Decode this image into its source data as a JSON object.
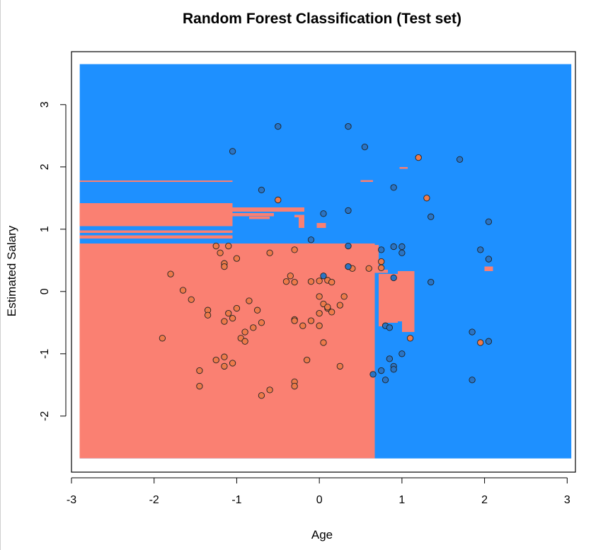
{
  "chart_data": {
    "type": "scatter",
    "title": "Random Forest Classification (Test set)",
    "xlabel": "Age",
    "ylabel": "Estimated Salary",
    "xlim": [
      -3.0,
      3.1
    ],
    "ylim": [
      -2.9,
      3.85
    ],
    "x_ticks": [
      -3,
      -2,
      -1,
      0,
      1,
      2,
      3
    ],
    "y_ticks": [
      -2,
      -1,
      0,
      1,
      2,
      3
    ],
    "x_tick_labels": [
      "-3",
      "-2",
      "-1",
      "0",
      "1",
      "2",
      "3"
    ],
    "y_tick_labels": [
      "-2",
      "-1",
      "0",
      "1",
      "2",
      "3"
    ],
    "grid": false,
    "colors": {
      "region_0": "#FA8072",
      "region_1": "#1E90FF",
      "point_0": "#EE7B4A",
      "point_1": "#2A74C4",
      "point_edge": "#222222"
    },
    "decision_regions": {
      "extent": {
        "x": [
          -2.9,
          3.05
        ],
        "y": [
          -2.68,
          3.65
        ]
      },
      "background_class": 1,
      "class0_rects": [
        [
          -2.9,
          0.67,
          -2.68,
          0.77
        ],
        [
          -1.1,
          0.08,
          0.55,
          0.57
        ],
        [
          0.08,
          0.65,
          0.55,
          0.75
        ],
        [
          0.65,
          0.72,
          0.3,
          0.75
        ],
        [
          0.72,
          0.83,
          0.3,
          0.35
        ],
        [
          0.72,
          1.15,
          -0.48,
          0.28
        ],
        [
          0.95,
          1.15,
          0.28,
          0.33
        ],
        [
          0.72,
          0.95,
          -0.5,
          -0.45
        ],
        [
          1.0,
          1.15,
          -0.65,
          -0.48
        ],
        [
          0.72,
          0.79,
          -0.56,
          -0.48
        ],
        [
          -2.9,
          -1.05,
          1.05,
          1.42
        ],
        [
          -2.9,
          -1.05,
          0.85,
          0.9
        ],
        [
          -2.9,
          -1.05,
          0.94,
          0.98
        ],
        [
          -1.05,
          -0.18,
          1.28,
          1.35
        ],
        [
          -1.05,
          -0.55,
          1.21,
          1.26
        ],
        [
          -0.85,
          -0.6,
          1.16,
          1.2
        ],
        [
          -0.3,
          -0.18,
          1.19,
          1.23
        ],
        [
          -0.25,
          -0.18,
          1.02,
          1.19
        ],
        [
          -0.03,
          0.08,
          1.02,
          1.1
        ],
        [
          -2.9,
          -1.05,
          1.76,
          1.78
        ],
        [
          0.5,
          0.65,
          1.76,
          1.79
        ],
        [
          0.97,
          1.07,
          1.97,
          2.0
        ],
        [
          2.0,
          2.1,
          0.33,
          0.4
        ]
      ]
    },
    "series": [
      {
        "name": "0",
        "x": [
          -1.9,
          -1.8,
          -1.65,
          -1.55,
          -1.45,
          -1.45,
          -1.35,
          -1.35,
          -1.25,
          -1.25,
          -1.2,
          -1.15,
          -1.15,
          -1.15,
          -1.15,
          -1.15,
          -1.1,
          -1.1,
          -1.05,
          -1.05,
          -1.0,
          -1.0,
          -0.95,
          -0.9,
          -0.9,
          -0.85,
          -0.8,
          -0.75,
          -0.7,
          -0.7,
          -0.6,
          -0.6,
          -0.5,
          -0.4,
          -0.35,
          -0.3,
          -0.3,
          -0.3,
          -0.3,
          -0.3,
          -0.3,
          -0.2,
          -0.15,
          -0.1,
          -0.1,
          0.0,
          0.0,
          0.0,
          0.0,
          0.05,
          0.05,
          0.1,
          0.1,
          0.1,
          0.15,
          0.15,
          0.25,
          0.25,
          0.3,
          0.35,
          0.4,
          0.6,
          0.75,
          0.75,
          1.1,
          1.2,
          1.3,
          1.95
        ],
        "y": [
          -0.75,
          0.28,
          0.02,
          -0.13,
          -1.27,
          -1.52,
          -0.3,
          -0.38,
          0.73,
          -1.1,
          0.62,
          0.45,
          0.4,
          -0.48,
          -1.05,
          -1.2,
          0.73,
          -0.35,
          -0.43,
          -1.15,
          0.53,
          -0.27,
          -0.75,
          -0.65,
          -0.8,
          -0.15,
          -0.58,
          -0.3,
          -1.67,
          -0.5,
          0.62,
          -1.58,
          1.47,
          0.16,
          0.25,
          0.15,
          -0.45,
          -1.45,
          -1.52,
          0.67,
          -0.47,
          -0.55,
          -1.1,
          0.16,
          -0.47,
          0.17,
          -0.08,
          -0.35,
          -0.55,
          -0.2,
          -0.82,
          -0.27,
          -0.25,
          0.18,
          0.15,
          -0.33,
          -1.2,
          -0.22,
          -0.08,
          0.4,
          0.37,
          0.37,
          0.48,
          0.38,
          -0.75,
          2.15,
          1.5,
          -0.82
        ]
      },
      {
        "name": "1",
        "x": [
          -1.05,
          -0.7,
          -0.5,
          -0.1,
          0.05,
          0.05,
          0.35,
          0.35,
          0.35,
          0.35,
          0.55,
          0.65,
          0.75,
          0.75,
          0.8,
          0.8,
          0.85,
          0.85,
          0.9,
          0.9,
          0.9,
          0.9,
          0.9,
          1.0,
          1.0,
          1.0,
          1.35,
          1.35,
          1.7,
          1.85,
          1.85,
          1.95,
          2.05,
          2.05,
          2.05
        ],
        "y": [
          2.25,
          1.63,
          2.65,
          0.83,
          1.25,
          0.25,
          2.65,
          1.3,
          0.73,
          0.4,
          2.32,
          -1.33,
          0.67,
          -1.27,
          -0.55,
          -1.42,
          -0.58,
          -1.08,
          1.67,
          0.72,
          0.22,
          -1.2,
          -1.25,
          0.72,
          0.62,
          -1.0,
          1.2,
          0.15,
          2.12,
          -0.65,
          -1.42,
          0.67,
          1.12,
          0.52,
          -0.8
        ]
      }
    ]
  }
}
